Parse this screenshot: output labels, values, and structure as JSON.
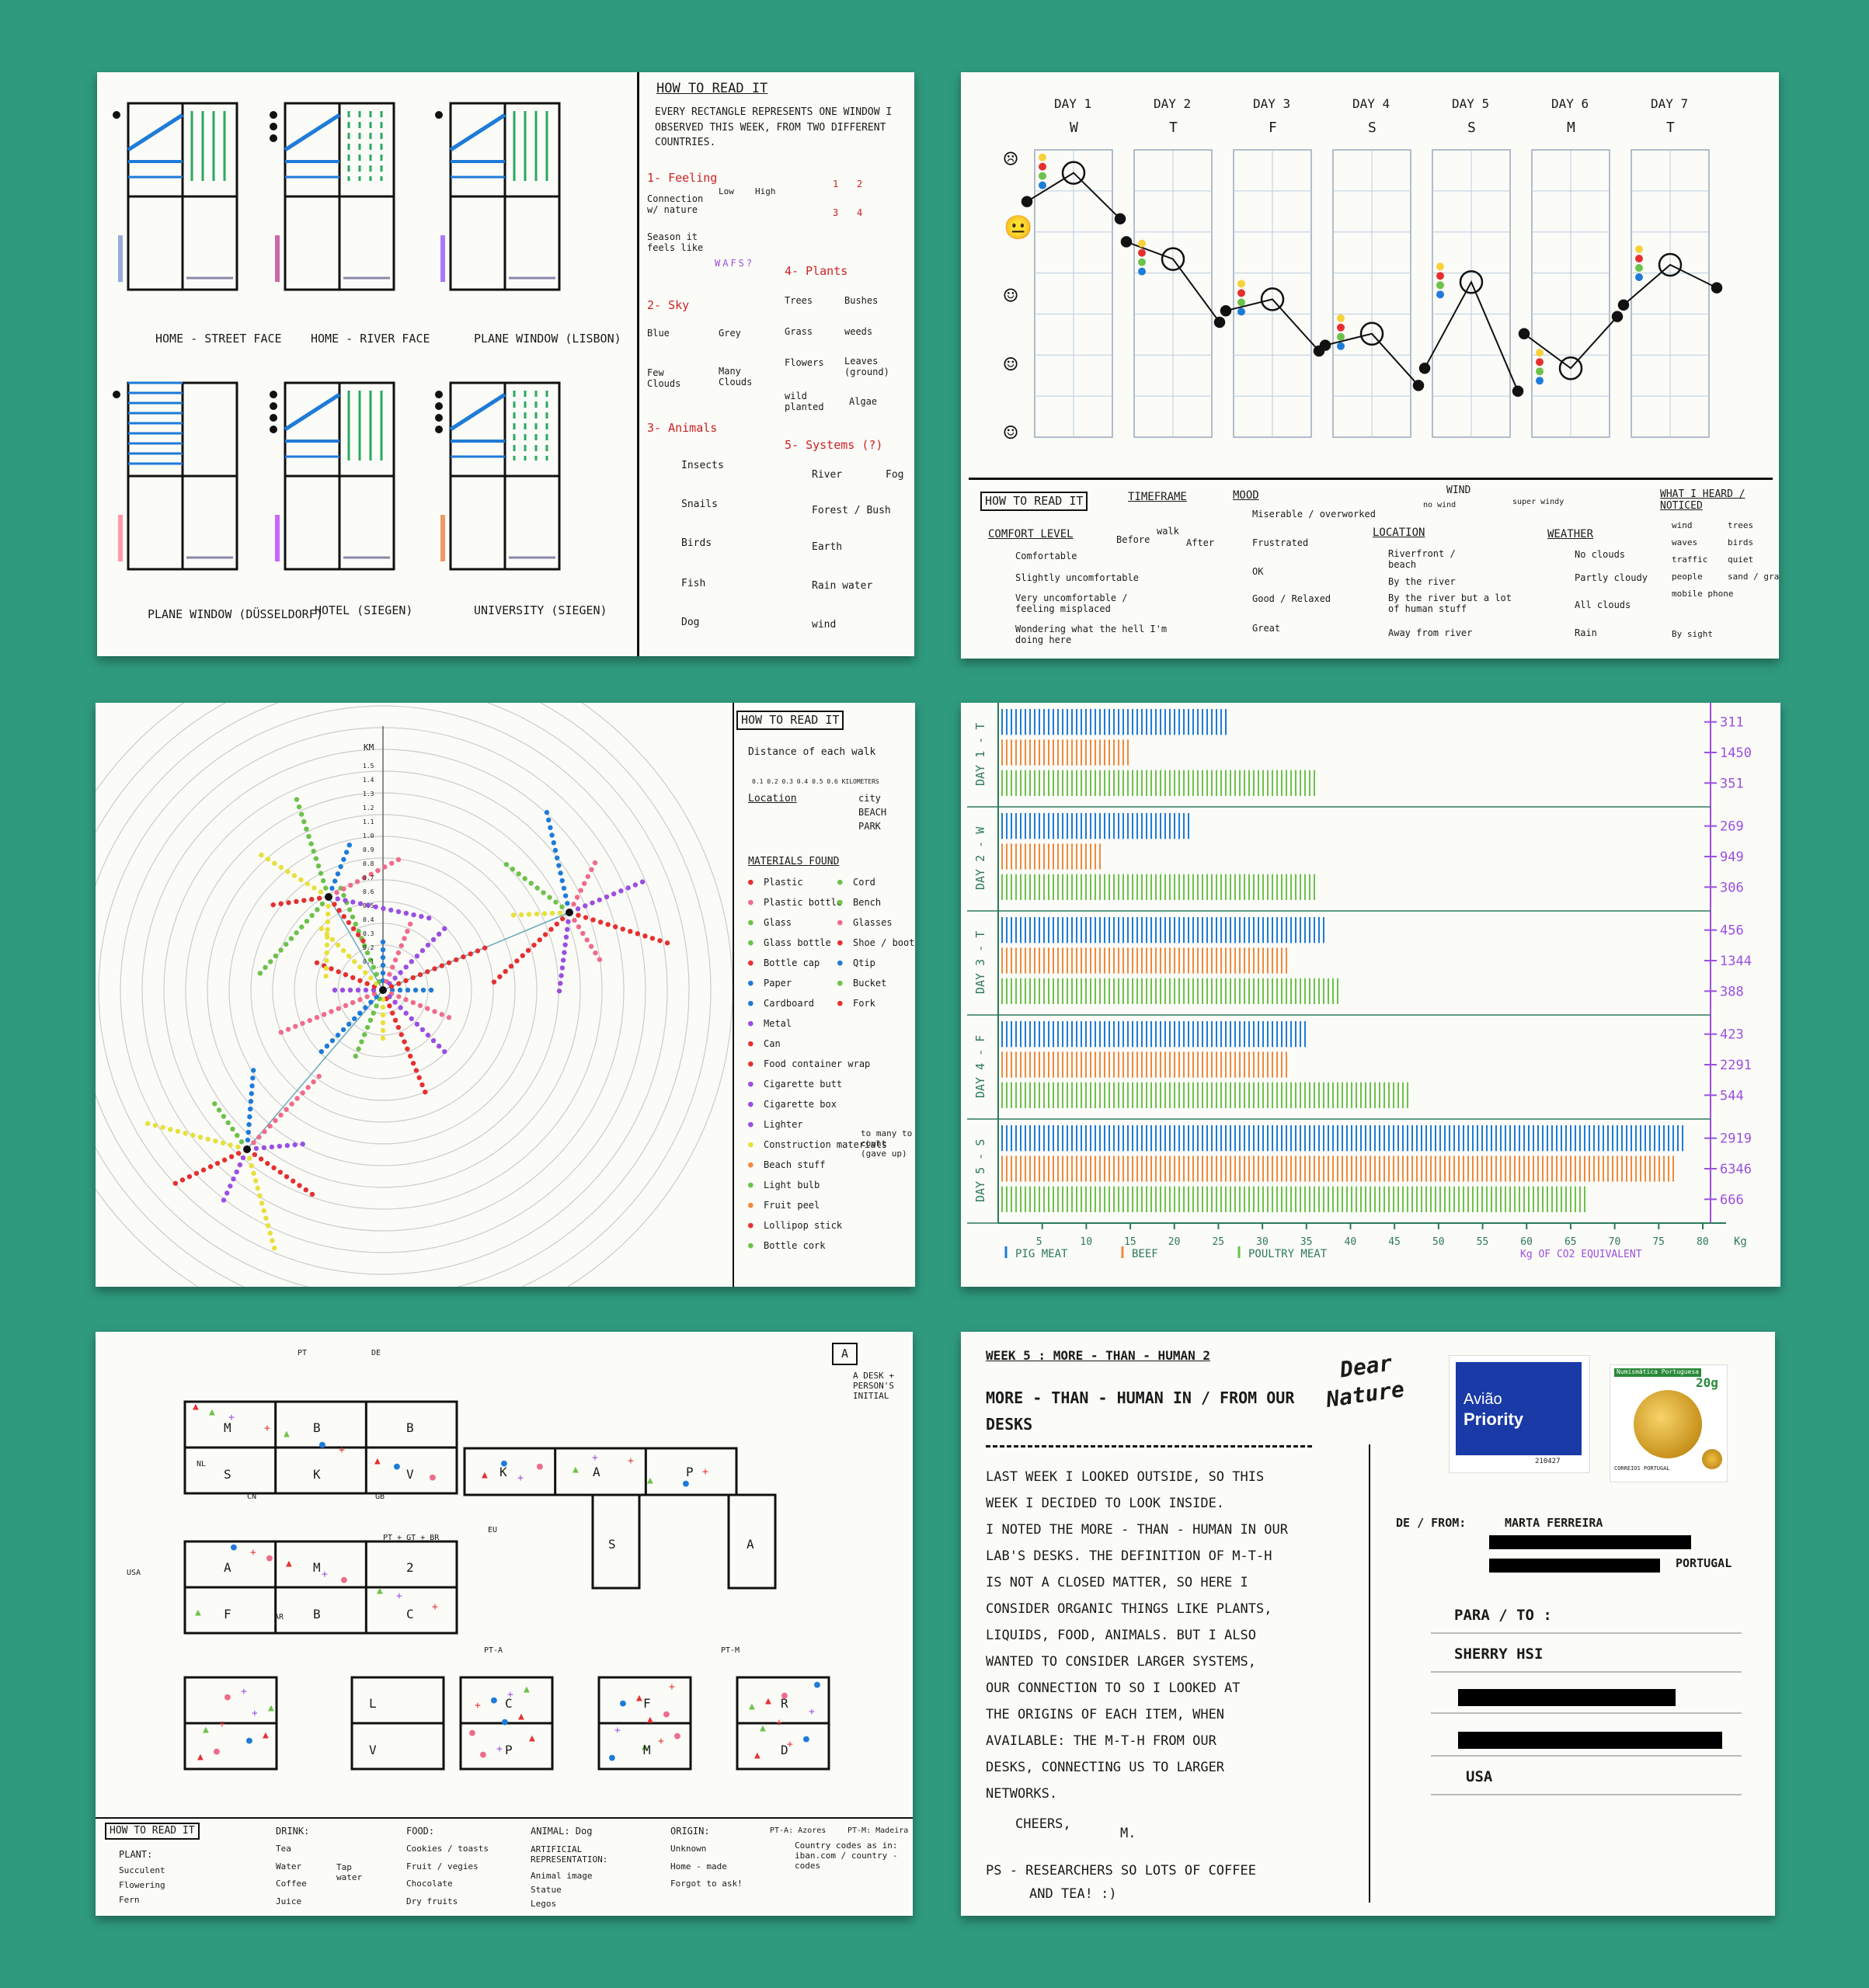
{
  "colors": {
    "background": "#2f9a7e",
    "card": "#fbfbf8",
    "blue": "#1e7bd8",
    "orange": "#f08a3c",
    "green": "#6cc24a",
    "purple": "#9b4fe0",
    "pink": "#f06b8a",
    "red": "#e63030",
    "ink": "#111111"
  },
  "card1": {
    "windows": [
      {
        "label": "HOME - STREET FACE"
      },
      {
        "label": "HOME - RIVER FACE"
      },
      {
        "label": "PLANE WINDOW (LISBON)"
      },
      {
        "label": "PLANE WINDOW (DÜSSELDORF)"
      },
      {
        "label": "HOTEL (SIEGEN)"
      },
      {
        "label": "UNIVERSITY (SIEGEN)"
      }
    ],
    "legend": {
      "title": "HOW TO READ IT",
      "intro": "EVERY RECTANGLE REPRESENTS ONE WINDOW I OBSERVED THIS WEEK, FROM TWO DIFFERENT COUNTRIES.",
      "feeling": "1- Feeling",
      "connection": "Connection w/ nature",
      "low": "Low",
      "high": "High",
      "season": "Season it feels like",
      "season_letters": "WAFS?",
      "grid_nums": [
        "1",
        "2",
        "3",
        "4"
      ],
      "sky": "2- Sky",
      "blue": "Blue",
      "grey": "Grey",
      "few_clouds": "Few Clouds",
      "many_clouds": "Many Clouds",
      "animals": "3- Animals",
      "animal_items": [
        "Insects",
        "Snails",
        "Birds",
        "Fish",
        "Dog"
      ],
      "plants": "4- Plants",
      "trees": "Trees",
      "bushes": "Bushes",
      "grass": "Grass",
      "weeds": "weeds",
      "flowers": "Flowers",
      "leaves": "Leaves (ground)",
      "wild_planted": "wild planted",
      "algae": "Algae",
      "systems": "5- Systems (?)",
      "system_items": [
        "River",
        "Fog",
        "Forest / Bush",
        "Earth",
        "Rain water",
        "wind"
      ]
    }
  },
  "card2": {
    "days": [
      {
        "n": "DAY 1",
        "d": "W"
      },
      {
        "n": "DAY 2",
        "d": "T"
      },
      {
        "n": "DAY 3",
        "d": "F"
      },
      {
        "n": "DAY 4",
        "d": "S"
      },
      {
        "n": "DAY 5",
        "d": "S"
      },
      {
        "n": "DAY 6",
        "d": "M"
      },
      {
        "n": "DAY 7",
        "d": "T"
      }
    ],
    "mood_series": [
      [
        4.1,
        4.6,
        3.8
      ],
      [
        3.4,
        3.1,
        2.0
      ],
      [
        2.2,
        2.4,
        1.5
      ],
      [
        1.6,
        1.8,
        0.9
      ],
      [
        1.2,
        2.7,
        0.8
      ],
      [
        1.8,
        1.2,
        2.1
      ],
      [
        2.3,
        3.0,
        2.6
      ]
    ],
    "legend": {
      "how": "HOW TO READ IT",
      "timeframe": "TIMEFRAME",
      "before": "Before",
      "walk": "walk",
      "after": "After",
      "comfort": "COMFORT LEVEL",
      "comfort_items": [
        "Comfortable",
        "Slightly uncomfortable",
        "Very uncomfortable / feeling misplaced",
        "Wondering what the hell I'm doing here"
      ],
      "mood": "MOOD",
      "mood_items": [
        "Miserable / overworked",
        "Frustrated",
        "OK",
        "Good / Relaxed",
        "Great"
      ],
      "wind": "WIND",
      "wind_low": "no wind",
      "wind_high": "super windy",
      "location": "LOCATION",
      "location_items": [
        "Riverfront / beach",
        "By the river",
        "By the river but a lot of human stuff",
        "Away from river"
      ],
      "weather": "WEATHER",
      "weather_items": [
        "No clouds",
        "Partly cloudy",
        "All clouds",
        "Rain"
      ],
      "heard": "WHAT I HEARD / NOTICED",
      "heard_items": [
        "wind",
        "trees",
        "waves",
        "birds",
        "traffic",
        "quiet",
        "people",
        "sand / gravel",
        "mobile phone"
      ],
      "by_sight": "By sight"
    }
  },
  "card3": {
    "axis_label": "KM",
    "ticks": [
      "1.5",
      "1.4",
      "1.3",
      "1.2",
      "1.1",
      "1.0",
      "0.9",
      "0.8",
      "0.7",
      "0.6",
      "0.5",
      "0.4",
      "0.3",
      "0.2",
      "0.1"
    ],
    "legend": {
      "how": "HOW TO READ IT",
      "distance": "Distance of each walk",
      "distance_ticks": "0.1 0.2 0.3 0.4 0.5 0.6  KILOMETERS",
      "location": "Location",
      "location_items": [
        "city",
        "BEACH",
        "PARK"
      ],
      "materials": "MATERIALS FOUND",
      "left_items": [
        "Plastic",
        "Plastic bottle",
        "Glass",
        "Glass bottle",
        "Bottle cap",
        "Paper",
        "Cardboard",
        "Metal",
        "Can",
        "Food container wrap",
        "Cigarette butt",
        "Cigarette box",
        "Lighter",
        "Construction materials",
        "Beach stuff",
        "Light bulb",
        "Fruit peel",
        "Lollipop stick",
        "Bottle cork"
      ],
      "right_items": [
        "Cord",
        "Bench",
        "Glasses",
        "Shoe / boot",
        "Qtip",
        "Bucket",
        "Fork"
      ],
      "too_many": "to many to count (gave up)"
    }
  },
  "card4": {
    "chart_data": {
      "type": "bar",
      "orientation": "horizontal",
      "title": "",
      "xlabel": "Kg",
      "xlim": [
        0,
        80
      ],
      "x_ticks": [
        5,
        10,
        15,
        20,
        25,
        30,
        35,
        40,
        45,
        50,
        55,
        60,
        65,
        70,
        75,
        80
      ],
      "days": [
        "DAY 1 - T",
        "DAY 2 - W",
        "DAY 3 - T",
        "DAY 4 - F",
        "DAY 5 - S"
      ],
      "series": [
        {
          "name": "PIG MEAT",
          "color": "#1e7bd8",
          "values": [
            26,
            22,
            37,
            35,
            78
          ]
        },
        {
          "name": "BEEF",
          "color": "#f08a3c",
          "values": [
            15,
            12,
            33,
            33,
            77
          ]
        },
        {
          "name": "POULTRY MEAT",
          "color": "#6cc24a",
          "values": [
            36,
            36,
            39,
            47,
            67
          ]
        }
      ],
      "right_labels": [
        [
          "311",
          "1450",
          "351"
        ],
        [
          "269",
          "949",
          "306"
        ],
        [
          "456",
          "1344",
          "388"
        ],
        [
          "423",
          "2291",
          "544"
        ],
        [
          "2919",
          "6346",
          "666"
        ]
      ],
      "right_axis_label": "Kg OF CO2 EQUIVALENT"
    }
  },
  "card5": {
    "corner_box": "A",
    "corner_note": "A DESK + PERSON'S INITIAL",
    "groups": [
      {
        "cells": [
          "M",
          "B",
          "B",
          "S",
          "K",
          "V"
        ]
      },
      {
        "cells": [
          "K",
          "A",
          "P",
          "S",
          "A"
        ]
      },
      {
        "cells": [
          "A",
          "M",
          "2",
          "F",
          "B",
          "C"
        ]
      },
      {
        "cells": [
          "L",
          "V"
        ]
      },
      {
        "cells": [
          "C",
          "P"
        ]
      },
      {
        "cells": [
          "F",
          "M"
        ]
      },
      {
        "cells": [
          "R",
          "D"
        ]
      }
    ],
    "codes": [
      "PT",
      "DE",
      "NL",
      "CN",
      "GB",
      "EU",
      "USA",
      "AR",
      "PT-A",
      "PT-M",
      "PT + GT + BR"
    ],
    "legend": {
      "how": "HOW TO READ IT",
      "plant": "PLANT:",
      "plant_items": [
        "Succulent",
        "Flowering",
        "Fern"
      ],
      "drink": "DRINK:",
      "drink_items": [
        "Tea",
        "Water",
        "Coffee",
        "Juice"
      ],
      "tap_water": "Tap water",
      "food": "FOOD:",
      "food_items": [
        "Cookies / toasts",
        "Fruit / vegies",
        "Chocolate",
        "Dry fruits"
      ],
      "animal": "ANIMAL: Dog",
      "artificial": "ARTIFICIAL REPRESENTATION:",
      "artificial_items": [
        "Animal image",
        "Statue",
        "Legos"
      ],
      "origin": "ORIGIN:",
      "origin_items": [
        "Unknown",
        "Home - made",
        "Forgot to ask!"
      ],
      "pt_a": "PT-A: Azores",
      "pt_m": "PT-M: Madeira",
      "country": "Country codes as in: iban.com / country - codes"
    }
  },
  "card6": {
    "week": "WEEK 5 : MORE - THAN - HUMAN 2",
    "title": "MORE - THAN - HUMAN IN / FROM OUR DESKS",
    "body_lines": [
      "LAST WEEK I LOOKED OUTSIDE, SO THIS",
      "WEEK I DECIDED TO LOOK INSIDE.",
      "I NOTED THE MORE - THAN - HUMAN IN OUR",
      "LAB'S DESKS. THE DEFINITION OF M-T-H",
      "IS NOT A CLOSED MATTER, SO HERE I",
      "CONSIDER ORGANIC THINGS LIKE PLANTS,",
      "LIQUIDS, FOOD, ANIMALS. BUT I ALSO",
      "WANTED TO CONSIDER LARGER SYSTEMS,",
      "OUR CONNECTION TO  SO I LOOKED AT",
      "THE ORIGINS OF EACH ITEM, WHEN",
      "AVAILABLE: THE M-T-H FROM OUR",
      "DESKS, CONNECTING US TO LARGER",
      "NETWORKS."
    ],
    "cheers": "CHEERS,",
    "initial": "M.",
    "ps": "PS - RESEARCHERS SO LOTS OF COFFEE",
    "ps2": "AND TEA!  :)",
    "logo1": "Dear",
    "logo2": "Nature",
    "stamp1_brand": "Avião",
    "stamp1_title": "Priority",
    "stamp1_num": "210427",
    "stamp2_brand": "Numismática Portuguesa",
    "stamp2_value": "20g",
    "stamp2_country": "CORREIOS PORTUGAL",
    "from_label": "DE / FROM:",
    "from_name": "MARTA FERREIRA",
    "from_country": "PORTUGAL",
    "to_label": "PARA / TO :",
    "to_name": "SHERRY HSI",
    "to_country": "USA"
  }
}
